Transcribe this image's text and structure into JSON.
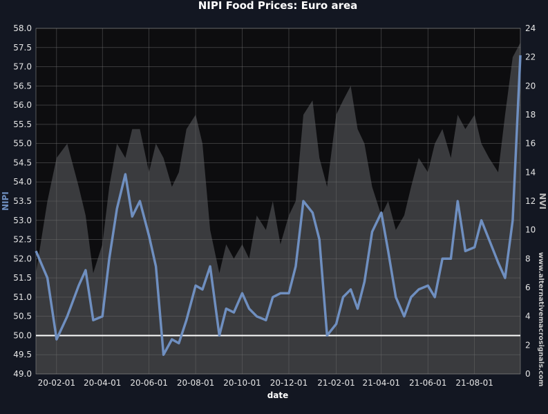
{
  "chart_data": {
    "type": "line",
    "title": "NIPI Food Prices: Euro area",
    "xlabel": "date",
    "ylabel_left": "NIPI",
    "ylabel_right": "NVI",
    "watermark": "www.alternativemacrosignals.com",
    "x_range": [
      "2020-01-05",
      "2021-09-30"
    ],
    "x_ticks": [
      "20-02-01",
      "20-04-01",
      "20-06-01",
      "20-08-01",
      "20-10-01",
      "20-12-01",
      "21-02-01",
      "21-04-01",
      "21-06-01",
      "21-08-01"
    ],
    "y_left": {
      "min": 49.0,
      "max": 58.0,
      "ticks": [
        "49.0",
        "49.5",
        "50.0",
        "50.5",
        "51.0",
        "51.5",
        "52.0",
        "52.5",
        "53.0",
        "53.5",
        "54.0",
        "54.5",
        "55.0",
        "55.5",
        "56.0",
        "56.5",
        "57.0",
        "57.5",
        "58.0"
      ]
    },
    "y_right": {
      "min": 0,
      "max": 24,
      "ticks": [
        "0",
        "2",
        "4",
        "6",
        "8",
        "10",
        "12",
        "14",
        "16",
        "18",
        "20",
        "22",
        "24"
      ]
    },
    "reference_line": 50.0,
    "grid": true,
    "colors": {
      "background": "#131722",
      "plot": "#0d0d0f",
      "area": "#3a3b3e",
      "nipi": "#6f8fc0",
      "reference": "#ffffff",
      "nipi_label": "#6f8fc0",
      "nvi_label": "#bdbdbd"
    },
    "series": [
      {
        "name": "NIPI",
        "axis": "left",
        "x": [
          "2020-01-05",
          "2020-01-20",
          "2020-02-01",
          "2020-02-15",
          "2020-03-01",
          "2020-03-10",
          "2020-03-20",
          "2020-04-01",
          "2020-04-10",
          "2020-04-20",
          "2020-05-01",
          "2020-05-10",
          "2020-05-20",
          "2020-06-01",
          "2020-06-10",
          "2020-06-20",
          "2020-07-01",
          "2020-07-10",
          "2020-07-20",
          "2020-08-01",
          "2020-08-10",
          "2020-08-20",
          "2020-09-01",
          "2020-09-10",
          "2020-09-20",
          "2020-10-01",
          "2020-10-10",
          "2020-10-20",
          "2020-11-01",
          "2020-11-10",
          "2020-11-20",
          "2020-12-01",
          "2020-12-10",
          "2020-12-20",
          "2021-01-01",
          "2021-01-10",
          "2021-01-20",
          "2021-02-01",
          "2021-02-10",
          "2021-02-20",
          "2021-03-01",
          "2021-03-10",
          "2021-03-20",
          "2021-04-01",
          "2021-04-10",
          "2021-04-20",
          "2021-05-01",
          "2021-05-10",
          "2021-05-20",
          "2021-06-01",
          "2021-06-10",
          "2021-06-20",
          "2021-07-01",
          "2021-07-10",
          "2021-07-20",
          "2021-08-01",
          "2021-08-10",
          "2021-08-20",
          "2021-09-01",
          "2021-09-10",
          "2021-09-20",
          "2021-09-30"
        ],
        "values": [
          52.2,
          51.5,
          49.9,
          50.5,
          51.3,
          51.7,
          50.4,
          50.5,
          52.0,
          53.3,
          54.2,
          53.1,
          53.5,
          52.6,
          51.8,
          49.5,
          49.9,
          49.8,
          50.4,
          51.3,
          51.2,
          51.8,
          50.0,
          50.7,
          50.6,
          51.1,
          50.7,
          50.5,
          50.4,
          51.0,
          51.1,
          51.1,
          51.8,
          53.5,
          53.2,
          52.5,
          50.0,
          50.3,
          51.0,
          51.2,
          50.7,
          51.4,
          52.7,
          53.2,
          52.2,
          51.0,
          50.5,
          51.0,
          51.2,
          51.3,
          51.0,
          52.0,
          52.0,
          53.5,
          52.2,
          52.3,
          53.0,
          52.5,
          51.9,
          51.5,
          53.0,
          57.3
        ]
      },
      {
        "name": "NVI",
        "axis": "right",
        "x": [
          "2020-01-05",
          "2020-01-20",
          "2020-02-01",
          "2020-02-15",
          "2020-03-01",
          "2020-03-10",
          "2020-03-20",
          "2020-04-01",
          "2020-04-10",
          "2020-04-20",
          "2020-05-01",
          "2020-05-10",
          "2020-05-20",
          "2020-06-01",
          "2020-06-10",
          "2020-06-20",
          "2020-07-01",
          "2020-07-10",
          "2020-07-20",
          "2020-08-01",
          "2020-08-10",
          "2020-08-20",
          "2020-09-01",
          "2020-09-10",
          "2020-09-20",
          "2020-10-01",
          "2020-10-10",
          "2020-10-20",
          "2020-11-01",
          "2020-11-10",
          "2020-11-20",
          "2020-12-01",
          "2020-12-10",
          "2020-12-20",
          "2021-01-01",
          "2021-01-10",
          "2021-01-20",
          "2021-02-01",
          "2021-02-10",
          "2021-02-20",
          "2021-03-01",
          "2021-03-10",
          "2021-03-20",
          "2021-04-01",
          "2021-04-10",
          "2021-04-20",
          "2021-05-01",
          "2021-05-10",
          "2021-05-20",
          "2021-06-01",
          "2021-06-10",
          "2021-06-20",
          "2021-07-01",
          "2021-07-10",
          "2021-07-20",
          "2021-08-01",
          "2021-08-10",
          "2021-08-20",
          "2021-09-01",
          "2021-09-10",
          "2021-09-20",
          "2021-09-30"
        ],
        "values": [
          7,
          12,
          15,
          16,
          13,
          11,
          7,
          9,
          13,
          16,
          15,
          17,
          17,
          14,
          16,
          15,
          13,
          14,
          17,
          18,
          16,
          10,
          7,
          9,
          8,
          9,
          8,
          11,
          10,
          12,
          9,
          11,
          12,
          18,
          19,
          15,
          13,
          18,
          19,
          20,
          17,
          16,
          13,
          11,
          12,
          10,
          11,
          13,
          15,
          14,
          16,
          17,
          15,
          18,
          17,
          18,
          16,
          15,
          14,
          18,
          22,
          23
        ]
      }
    ]
  }
}
